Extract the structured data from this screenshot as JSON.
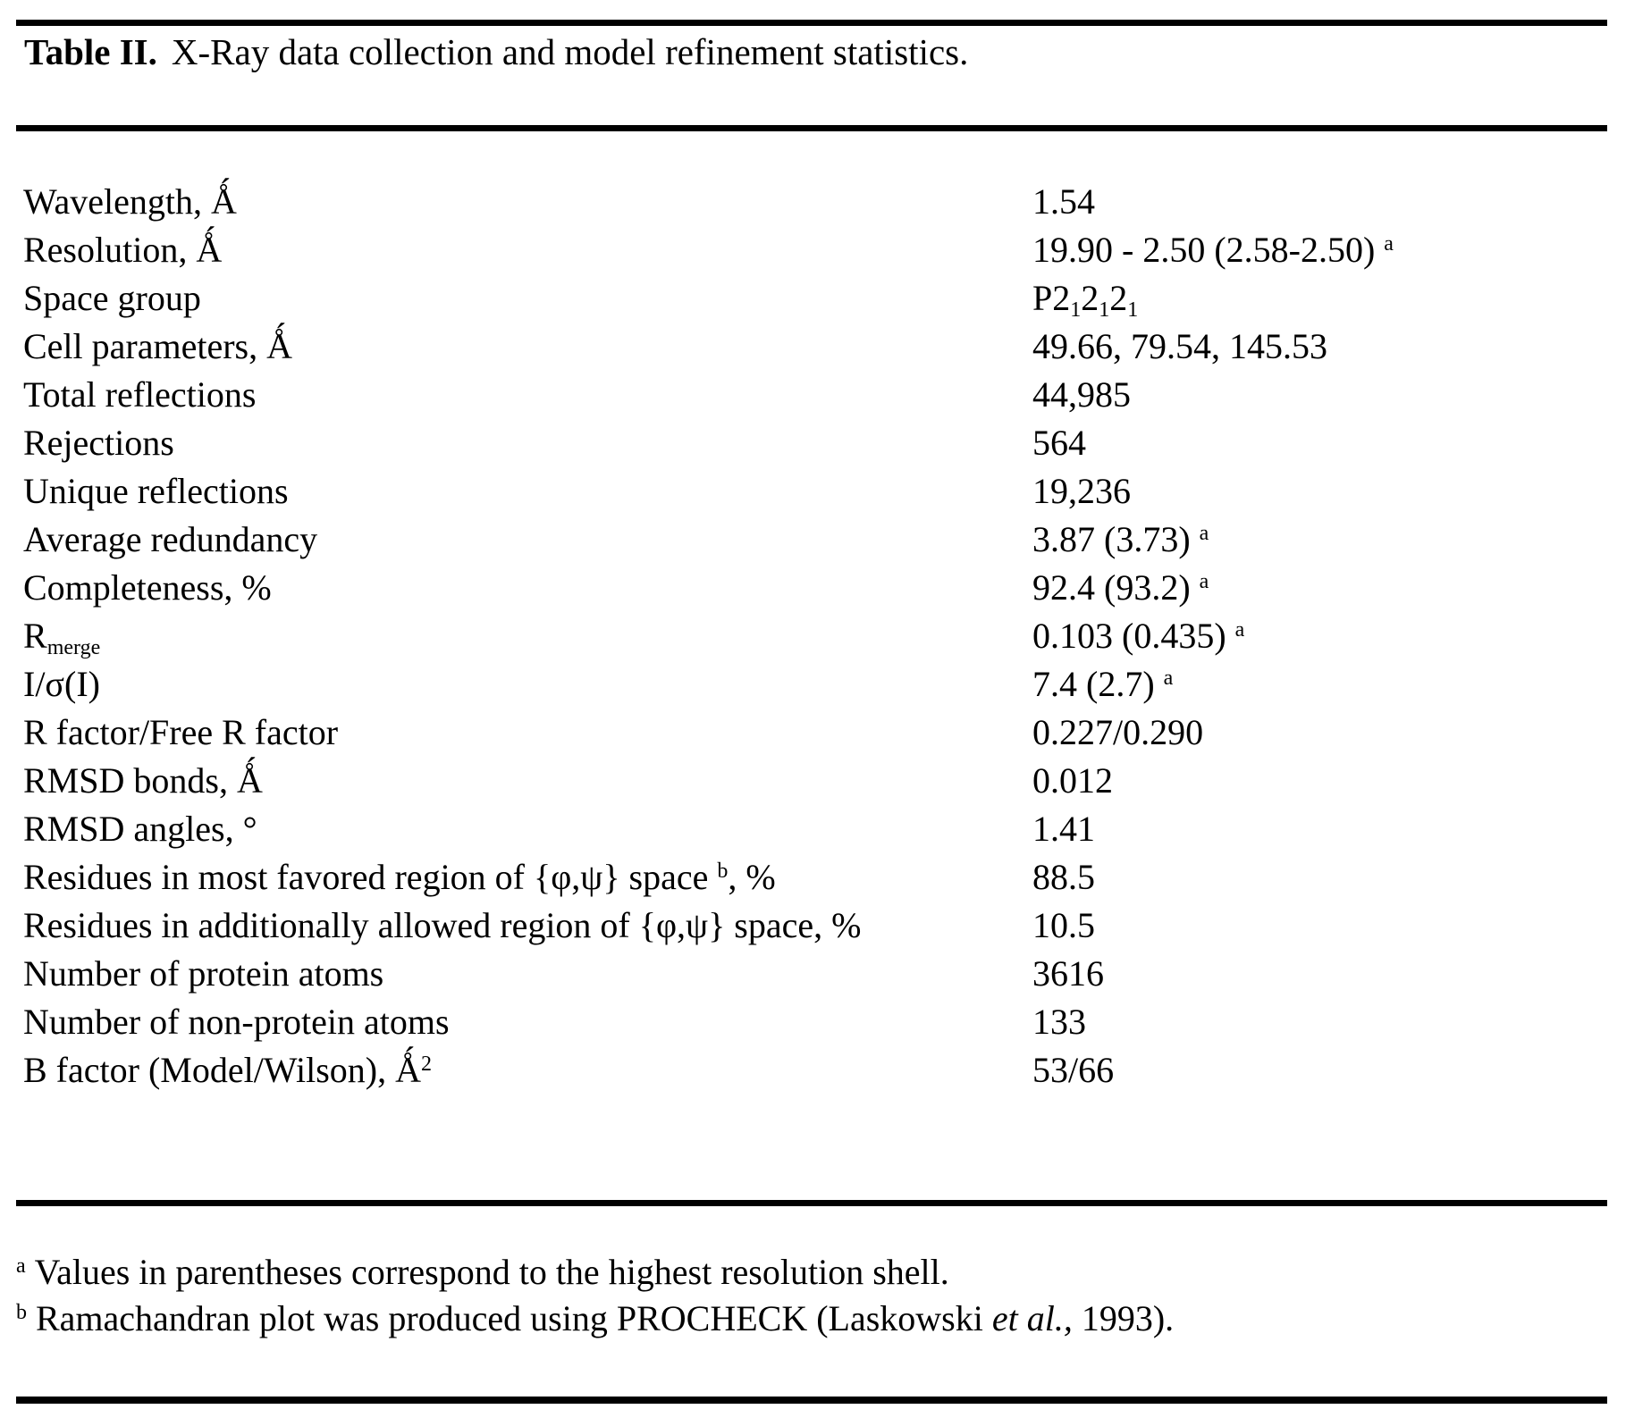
{
  "title": {
    "bold": "Table II.",
    "rest": "X-Ray data collection and model refinement statistics."
  },
  "table": {
    "rows": [
      {
        "label": "Wavelength, Ǻ",
        "value": "1.54"
      },
      {
        "label": "Resolution, Ǻ",
        "value": "19.90 - 2.50 (2.58-2.50) ^a^"
      },
      {
        "label": "Space group",
        "value": "P2~1~2~1~2~1~"
      },
      {
        "label": "Cell parameters, Ǻ",
        "value": "49.66, 79.54, 145.53"
      },
      {
        "label": "Total reflections",
        "value": "44,985"
      },
      {
        "label": "Rejections",
        "value": "564"
      },
      {
        "label": "Unique reflections",
        "value": "19,236"
      },
      {
        "label": "Average redundancy",
        "value": "3.87 (3.73) ^a^"
      },
      {
        "label": "Completeness, %",
        "value": "92.4 (93.2) ^a^"
      },
      {
        "label": "R~merge~",
        "value": "0.103 (0.435) ^a^"
      },
      {
        "label": "I/σ(I)",
        "value": "7.4 (2.7) ^a^"
      },
      {
        "label": "R factor/Free R factor",
        "value": "0.227/0.290"
      },
      {
        "label": "RMSD bonds, Ǻ",
        "value": "0.012"
      },
      {
        "label": "RMSD angles, °",
        "value": "1.41"
      },
      {
        "label": "Residues in most favored region of {φ,ψ} space ^b^, %",
        "value": "88.5"
      },
      {
        "label": "Residues in additionally allowed region of {φ,ψ} space, %",
        "value": "10.5"
      },
      {
        "label": "Number of protein atoms",
        "value": "3616"
      },
      {
        "label": "Number of non-protein atoms",
        "value": "133"
      },
      {
        "label": "B factor (Model/Wilson), Ǻ^2^",
        "value": "53/66"
      }
    ]
  },
  "footnotes": [
    {
      "marker": "a",
      "text": "Values in parentheses correspond to the highest resolution shell."
    },
    {
      "marker": "b",
      "text": "Ramachandran plot was produced using PROCHECK (Laskowski *et al.,* 1993)."
    }
  ],
  "colors": {
    "background": "#ffffff",
    "text": "#000000",
    "rule": "#000000"
  }
}
